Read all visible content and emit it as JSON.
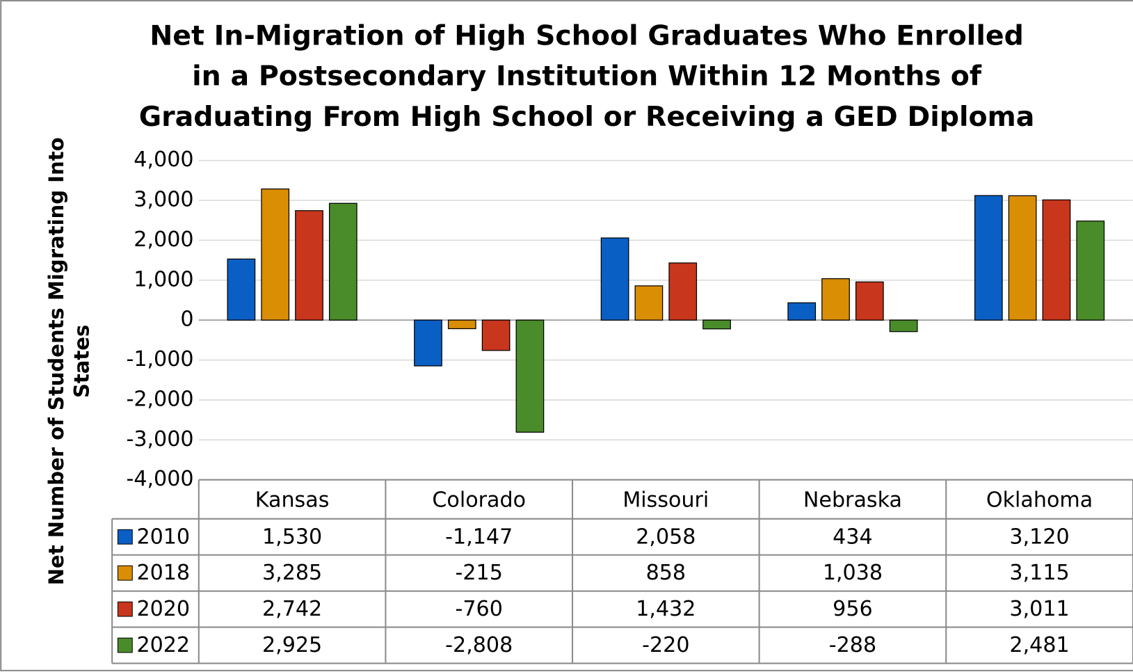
{
  "chart_data": {
    "type": "bar",
    "title": [
      "Net In-Migration of High School Graduates Who Enrolled",
      "in a Postsecondary Institution Within 12 Months of",
      "Graduating From High School or Receiving a GED Diploma"
    ],
    "y_label": [
      "Net Number of Students Migrating Into",
      "States"
    ],
    "categories": [
      "Kansas",
      "Colorado",
      "Missouri",
      "Nebraska",
      "Oklahoma"
    ],
    "series": [
      {
        "name": "2010",
        "color": "#0a5fc4",
        "values": [
          1530,
          -1147,
          2058,
          434,
          3120
        ],
        "value_labels": [
          "1,530",
          "-1,147",
          "2,058",
          "434",
          "3,120"
        ]
      },
      {
        "name": "2018",
        "color": "#d98e04",
        "values": [
          3285,
          -215,
          858,
          1038,
          3115
        ],
        "value_labels": [
          "3,285",
          "-215",
          "858",
          "1,038",
          "3,115"
        ]
      },
      {
        "name": "2020",
        "color": "#c8361d",
        "values": [
          2742,
          -760,
          1432,
          956,
          3011
        ],
        "value_labels": [
          "2,742",
          "-760",
          "1,432",
          "956",
          "3,011"
        ]
      },
      {
        "name": "2022",
        "color": "#4a8c2a",
        "values": [
          2925,
          -2808,
          -220,
          -288,
          2481
        ],
        "value_labels": [
          "2,925",
          "-2,808",
          "-220",
          "-288",
          "2,481"
        ]
      }
    ],
    "ylim": [
      -4000,
      4000
    ],
    "yticks": [
      {
        "value": -4000,
        "label": "-4,000"
      },
      {
        "value": -3000,
        "label": "-3,000"
      },
      {
        "value": -2000,
        "label": "-2,000"
      },
      {
        "value": -1000,
        "label": "-1,000"
      },
      0,
      {
        "value": 1000,
        "label": "1,000"
      },
      {
        "value": 2000,
        "label": "2,000"
      },
      {
        "value": 3000,
        "label": "3,000"
      },
      {
        "value": 4000,
        "label": "4,000"
      }
    ],
    "grid": true,
    "data_table": true
  }
}
